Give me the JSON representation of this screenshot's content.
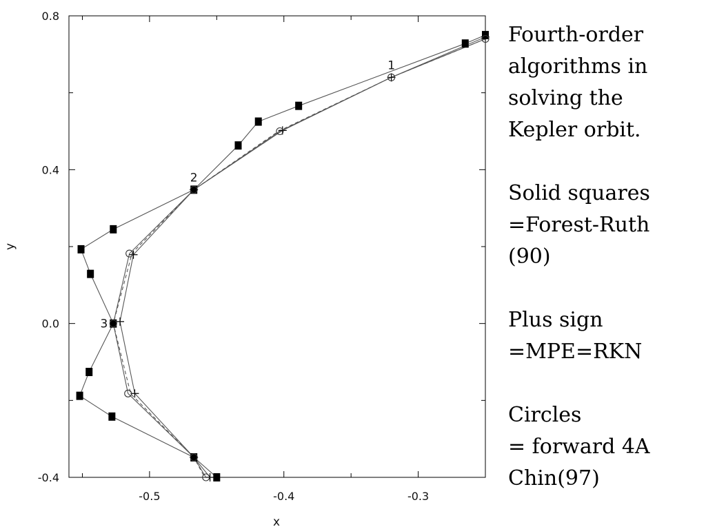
{
  "chart_data": {
    "type": "scatter",
    "title": "",
    "xlabel": "x",
    "ylabel": "y",
    "xlim": [
      -0.56,
      -0.25
    ],
    "ylim": [
      -0.4,
      0.8
    ],
    "xticks": [
      "-0.5",
      "-0.4",
      "-0.3"
    ],
    "yticks": [
      "0.8",
      "0.4",
      "0.0",
      "-0.4"
    ],
    "xtick_values": [
      -0.5,
      -0.4,
      -0.3
    ],
    "ytick_values": [
      0.8,
      0.4,
      0.0,
      -0.4
    ],
    "grid": false,
    "reference_points": [
      {
        "label": "1",
        "x": -0.32,
        "y": 0.64
      },
      {
        "label": "2",
        "x": -0.467,
        "y": 0.348
      },
      {
        "label": "3",
        "x": -0.527,
        "y": 0.0
      }
    ],
    "series": [
      {
        "name": "Solid squares =Forest-Ruth (90)",
        "marker": "square",
        "points": [
          [
            -0.25,
            0.75
          ],
          [
            -0.265,
            0.728
          ],
          [
            -0.389,
            0.566
          ],
          [
            -0.419,
            0.525
          ],
          [
            -0.434,
            0.463
          ],
          [
            -0.467,
            0.348
          ],
          [
            -0.527,
            0.245
          ],
          [
            -0.551,
            0.193
          ],
          [
            -0.544,
            0.129
          ],
          [
            -0.527,
            0.0
          ],
          [
            -0.545,
            -0.126
          ],
          [
            -0.552,
            -0.188
          ],
          [
            -0.528,
            -0.242
          ],
          [
            -0.467,
            -0.348
          ],
          [
            -0.45,
            -0.4
          ]
        ]
      },
      {
        "name": "Plus sign =MPE=RKN",
        "marker": "plus",
        "points": [
          [
            -0.25,
            0.745
          ],
          [
            -0.32,
            0.64
          ],
          [
            -0.401,
            0.502
          ],
          [
            -0.467,
            0.348
          ],
          [
            -0.512,
            0.179
          ],
          [
            -0.522,
            0.005
          ],
          [
            -0.511,
            -0.182
          ],
          [
            -0.467,
            -0.348
          ],
          [
            -0.455,
            -0.4
          ]
        ]
      },
      {
        "name": "Circles = forward 4A Chin(97)",
        "marker": "circle",
        "points": [
          [
            -0.25,
            0.74
          ],
          [
            -0.32,
            0.64
          ],
          [
            -0.403,
            0.5
          ],
          [
            -0.467,
            0.348
          ],
          [
            -0.515,
            0.182
          ],
          [
            -0.527,
            0.0
          ],
          [
            -0.516,
            -0.182
          ],
          [
            -0.467,
            -0.348
          ],
          [
            -0.458,
            -0.4
          ]
        ]
      },
      {
        "name": "",
        "marker": "none",
        "style": "dashed",
        "points": [
          [
            -0.25,
            0.74
          ],
          [
            -0.32,
            0.64
          ],
          [
            -0.404,
            0.5
          ],
          [
            -0.467,
            0.348
          ],
          [
            -0.513,
            0.183
          ],
          [
            -0.527,
            0.0
          ],
          [
            -0.514,
            -0.183
          ],
          [
            -0.467,
            -0.348
          ],
          [
            -0.459,
            -0.4
          ]
        ]
      }
    ]
  },
  "side_text": {
    "paragraphs": [
      {
        "lines": [
          "Fourth-order",
          "algorithms  in",
          "solving the",
          "Kepler orbit."
        ]
      },
      {
        "lines": [
          "Solid squares",
          "=Forest-Ruth",
          "(90)"
        ]
      },
      {
        "lines": [
          "Plus sign",
          "=MPE=RKN"
        ]
      },
      {
        "lines": [
          "Circles",
          "= forward 4A",
          "Chin(97)"
        ]
      }
    ]
  },
  "colors": {
    "line": "#555555",
    "marker": "#000000",
    "axis": "#000000",
    "background": "#ffffff"
  }
}
